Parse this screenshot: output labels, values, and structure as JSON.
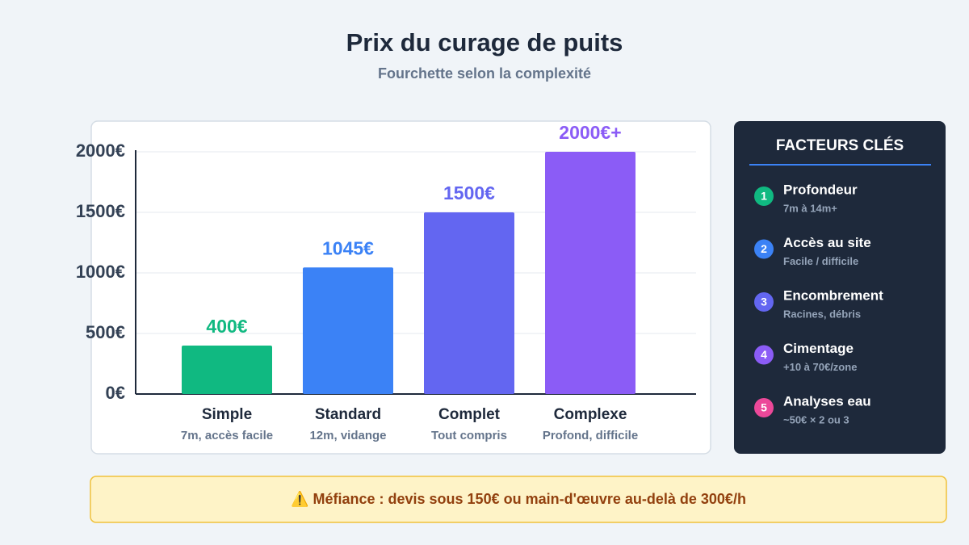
{
  "chart_data": {
    "type": "bar",
    "title": "Prix du curage de puits",
    "subtitle": "Fourchette selon la complexité",
    "categories": [
      "Simple",
      "Standard",
      "Complet",
      "Complexe"
    ],
    "subcategories": [
      "7m, accès facile",
      "12m, vidange",
      "Tout compris",
      "Profond, difficile"
    ],
    "values": [
      400,
      1045,
      1500,
      2000
    ],
    "value_labels": [
      "400€",
      "1045€",
      "1500€",
      "2000€+"
    ],
    "colors": [
      "#10b981",
      "#3b82f6",
      "#6366f1",
      "#8b5cf6"
    ],
    "ylim": [
      0,
      2000
    ],
    "yticks": [
      {
        "value": 0,
        "label": "0€"
      },
      {
        "value": 500,
        "label": "500€"
      },
      {
        "value": 1000,
        "label": "1000€"
      },
      {
        "value": 1500,
        "label": "1500€"
      },
      {
        "value": 2000,
        "label": "2000€"
      }
    ],
    "grid": true
  },
  "sidebar": {
    "title": "FACTEURS CLÉS",
    "items": [
      {
        "number": "1",
        "label": "Profondeur",
        "detail": "7m à 14m+",
        "color": "#10b981"
      },
      {
        "number": "2",
        "label": "Accès au site",
        "detail": "Facile / difficile",
        "color": "#3b82f6"
      },
      {
        "number": "3",
        "label": "Encombrement",
        "detail": "Racines, débris",
        "color": "#6366f1"
      },
      {
        "number": "4",
        "label": "Cimentage",
        "detail": "+10 à 70€/zone",
        "color": "#8b5cf6"
      },
      {
        "number": "5",
        "label": "Analyses eau",
        "detail": "~50€ × 2 ou 3",
        "color": "#ec4899"
      }
    ]
  },
  "warning": "⚠️ Méfiance : devis sous 150€ ou main-d'œuvre au-delà de 300€/h"
}
